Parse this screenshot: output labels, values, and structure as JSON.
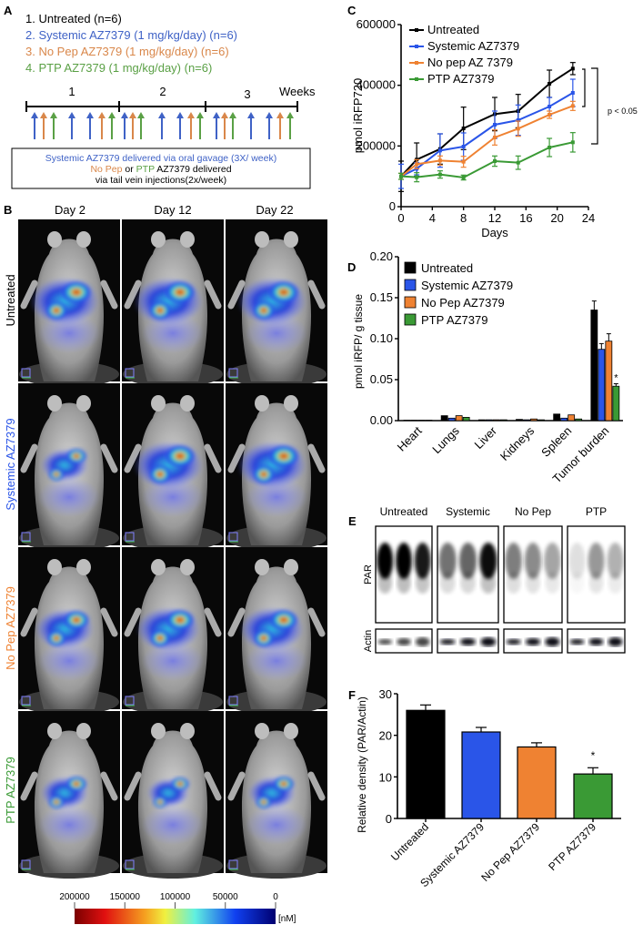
{
  "panels": {
    "a": "A",
    "b": "B",
    "c": "C",
    "d": "D",
    "e": "E",
    "f": "F"
  },
  "colors": {
    "untreated": "#000000",
    "systemic": "#2a55e8",
    "nopep": "#ef8232",
    "ptp": "#3a9a35",
    "text_systemic": "#3f62c6",
    "text_nopep": "#d9874a",
    "text_ptp": "#5aa045"
  },
  "panel_a": {
    "legend": [
      "1.  Untreated (n=6)",
      "2.  Systemic AZ7379 (1 mg/kg/day) (n=6)",
      "3.  No Pep AZ7379 (1 mg/kg/day) (n=6)",
      "4.  PTP AZ7379 (1 mg/kg/day) (n=6)"
    ],
    "weeks": [
      "1",
      "2",
      "3"
    ],
    "weeks_label": "Weeks",
    "box_line1": "Systemic AZ7379 delivered via oral gavage (3X/ week)",
    "box_line2_a": "No Pep",
    "box_line2_b": " or ",
    "box_line2_c": "PTP",
    "box_line2_d": " AZ7379 delivered",
    "box_line3": "via tail vein injections(2x/week)"
  },
  "panel_b": {
    "days": [
      "Day 2",
      "Day 12",
      "Day 22"
    ],
    "rows": [
      "Untreated",
      "Systemic AZ7379",
      "No Pep AZ7379",
      "PTP AZ7379"
    ],
    "colorbar_ticks": [
      "200000",
      "150000",
      "100000",
      "50000",
      "0"
    ],
    "colorbar_unit": "[nM]"
  },
  "panel_e": {
    "groups": [
      "Untreated",
      "Systemic",
      "No Pep",
      "PTP"
    ],
    "row_labels": [
      "PAR",
      "Actin"
    ]
  },
  "chart_data": [
    {
      "id": "C",
      "type": "line",
      "xlabel": "Days",
      "ylabel": "pmol iRFP720",
      "xlim": [
        0,
        24
      ],
      "xticks": [
        0,
        4,
        8,
        12,
        16,
        20,
        24
      ],
      "ylim": [
        0,
        600000
      ],
      "yticks": [
        0,
        200000,
        400000,
        600000
      ],
      "x": [
        0,
        2,
        5,
        8,
        12,
        15,
        19,
        22
      ],
      "series": [
        {
          "name": "Untreated",
          "color": "#000000",
          "values": [
            100000,
            155000,
            190000,
            258000,
            305000,
            315000,
            405000,
            455000
          ],
          "errors": [
            50000,
            55000,
            50000,
            70000,
            55000,
            55000,
            45000,
            20000
          ]
        },
        {
          "name": "Systemic AZ7379",
          "color": "#2a55e8",
          "values": [
            100000,
            125000,
            185000,
            198000,
            270000,
            285000,
            330000,
            375000
          ],
          "errors": [
            40000,
            20000,
            55000,
            45000,
            45000,
            50000,
            30000,
            45000
          ]
        },
        {
          "name": "No pep AZ 7379",
          "color": "#ef8232",
          "values": [
            100000,
            140000,
            152000,
            148000,
            228000,
            257000,
            303000,
            332000
          ],
          "errors": [
            10000,
            15000,
            15000,
            18000,
            25000,
            25000,
            12000,
            15000
          ]
        },
        {
          "name": "PTP AZ7379",
          "color": "#3a9a35",
          "values": [
            100000,
            97000,
            106000,
            96000,
            150000,
            145000,
            195000,
            212000
          ],
          "errors": [
            10000,
            15000,
            12000,
            8000,
            17000,
            22000,
            30000,
            32000
          ]
        }
      ],
      "annotation": "p < 0.05",
      "legend": "top-left"
    },
    {
      "id": "D",
      "type": "bar",
      "ylabel": "pmol iRFP/ g tissue",
      "ylim": [
        0,
        0.2
      ],
      "yticks": [
        "0.00",
        "0.05",
        "0.10",
        "0.15",
        "0.20"
      ],
      "categories": [
        "Heart",
        "Lungs",
        "Liver",
        "Kidneys",
        "Spleen",
        "Tumor burden"
      ],
      "series": [
        {
          "name": "Untreated",
          "color": "#000000",
          "values": [
            0.0005,
            0.006,
            0.001,
            0.0015,
            0.008,
            0.135
          ],
          "errors": [
            0,
            0,
            0,
            0,
            0,
            0.011
          ]
        },
        {
          "name": "Systemic AZ7379",
          "color": "#2a55e8",
          "values": [
            0.0005,
            0.003,
            0.001,
            0.001,
            0.003,
            0.087
          ],
          "errors": [
            0,
            0,
            0,
            0,
            0,
            0.007
          ]
        },
        {
          "name": "No Pep AZ7379",
          "color": "#ef8232",
          "values": [
            0.0005,
            0.006,
            0.001,
            0.002,
            0.007,
            0.097
          ],
          "errors": [
            0,
            0,
            0,
            0,
            0,
            0.009
          ]
        },
        {
          "name": "PTP AZ7379",
          "color": "#3a9a35",
          "values": [
            0.0005,
            0.004,
            0.001,
            0.001,
            0.002,
            0.042
          ],
          "errors": [
            0,
            0,
            0,
            0,
            0,
            0.003
          ]
        }
      ],
      "annotation": "*",
      "legend": "top-left"
    },
    {
      "id": "F",
      "type": "bar",
      "ylabel": "Relative density (PAR/Actin)",
      "ylim": [
        0,
        30
      ],
      "yticks": [
        "0",
        "10",
        "20",
        "30"
      ],
      "categories": [
        "Untreated",
        "Systemic AZ7379",
        "No Pep AZ7379",
        "PTP AZ7379"
      ],
      "values": [
        26,
        20.8,
        17.2,
        10.7
      ],
      "errors": [
        1.3,
        1.1,
        1.0,
        1.5
      ],
      "colors": [
        "#000000",
        "#2a55e8",
        "#ef8232",
        "#3a9a35"
      ],
      "annotation": "*"
    }
  ]
}
